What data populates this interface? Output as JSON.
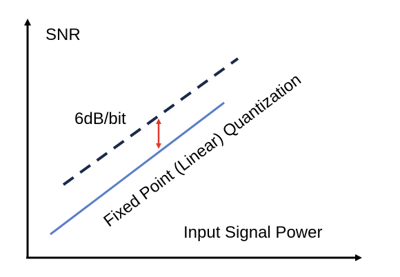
{
  "axes": {
    "y_label": "SNR",
    "x_label": "Input Signal Power",
    "color": "#000000"
  },
  "lines": {
    "solid": {
      "label": "Fixed Point (Linear) Quantization",
      "color": "#5b7ec5"
    },
    "dashed": {
      "color": "#1b2a4a"
    }
  },
  "gap": {
    "label": "6dB/bit",
    "color": "#e03b2b"
  }
}
